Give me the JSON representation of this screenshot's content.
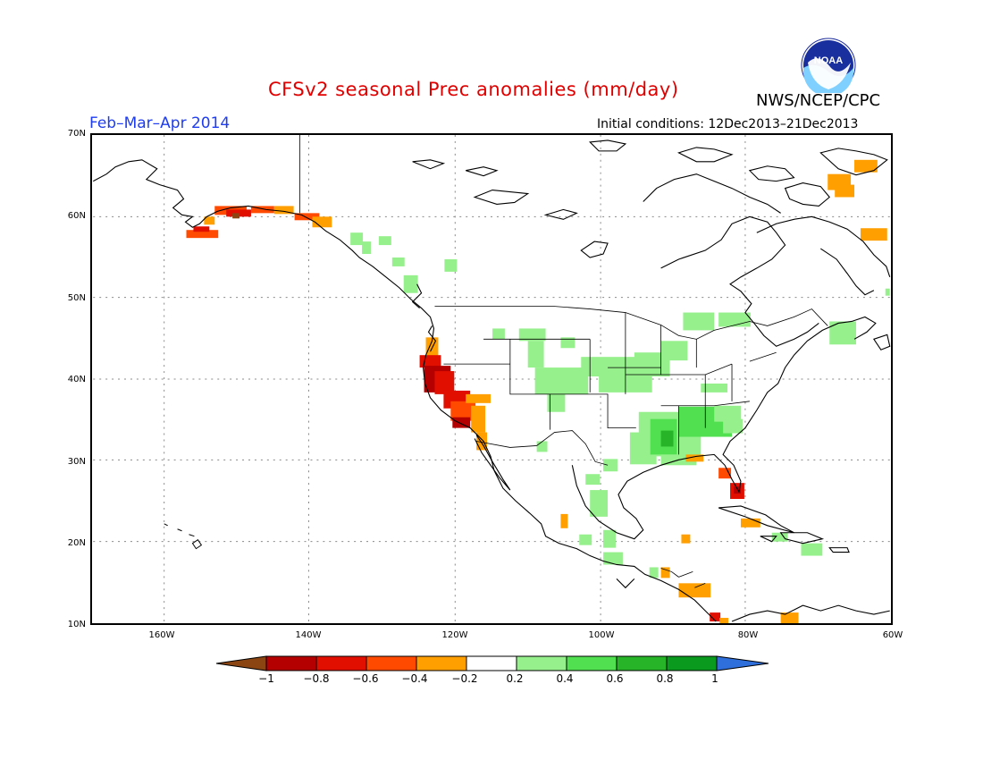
{
  "header": {
    "title": "CFSv2 seasonal Prec anomalies (mm/day)",
    "agency": "NWS/NCEP/CPC",
    "logo_text": "NOAA",
    "season": "Feb–Mar–Apr 2014",
    "initial_conditions": "Initial conditions: 12Dec2013–21Dec2013"
  },
  "map": {
    "lat_labels": [
      "70N",
      "60N",
      "50N",
      "40N",
      "30N",
      "20N",
      "10N"
    ],
    "lon_labels": [
      "160W",
      "140W",
      "120W",
      "100W",
      "80W",
      "60W"
    ]
  },
  "legend": {
    "labels": [
      "−1",
      "−0.8",
      "−0.6",
      "−0.4",
      "−0.2",
      "0.2",
      "0.4",
      "0.6",
      "0.8",
      "1"
    ],
    "colors": [
      "#8b4513",
      "#b40000",
      "#e00f00",
      "#ff4a00",
      "#ff9f00",
      "#ffffff",
      "#96f08c",
      "#50e050",
      "#28b428",
      "#0a9a1e",
      "#2e6fdc"
    ]
  },
  "colors": {
    "title": "#e00000",
    "season": "#1e3cf0",
    "dry_strong": "#b40000",
    "dry_mid": "#e00f00",
    "dry_light": "#ff4a00",
    "dry_weak": "#ff9f00",
    "wet_weak": "#96f08c",
    "wet_light": "#50e050",
    "wet_mid": "#28b428"
  }
}
